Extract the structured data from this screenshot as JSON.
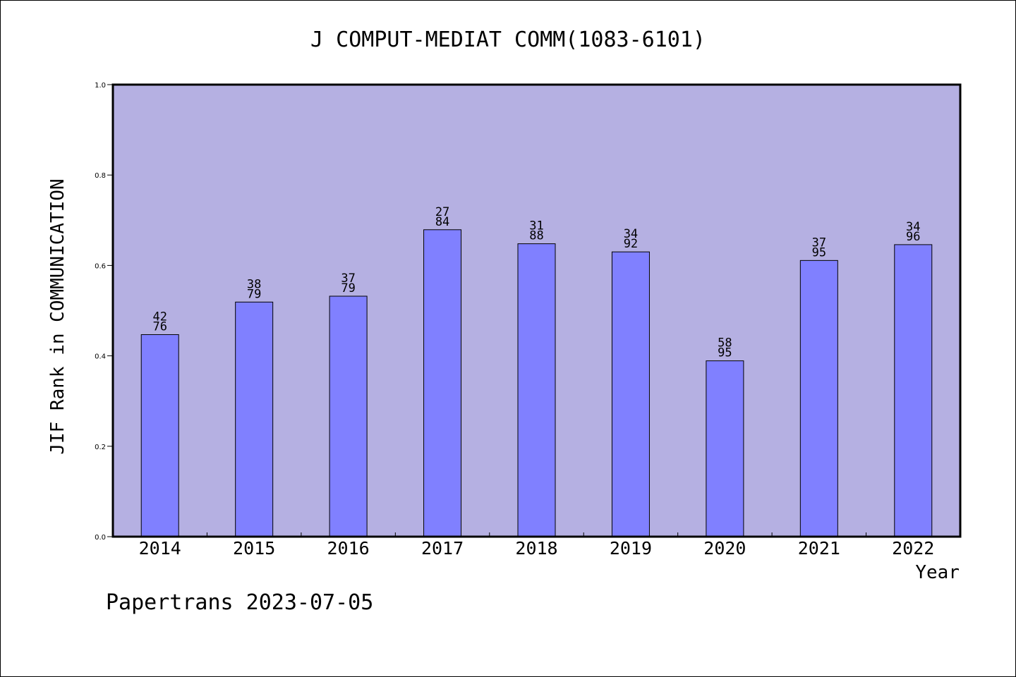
{
  "chart_data": {
    "type": "bar",
    "title": "J COMPUT-MEDIAT COMM(1083-6101)",
    "xlabel": "Year",
    "ylabel": "JIF Rank in COMMUNICATION",
    "ylim": [
      0,
      1.0
    ],
    "yticks": [
      "0.0",
      "0.2",
      "0.4",
      "0.6",
      "0.8",
      "1.0"
    ],
    "categories": [
      "2014",
      "2015",
      "2016",
      "2017",
      "2018",
      "2019",
      "2020",
      "2021",
      "2022"
    ],
    "values": [
      0.447,
      0.519,
      0.532,
      0.679,
      0.648,
      0.63,
      0.389,
      0.611,
      0.646
    ],
    "ranks": [
      {
        "rank": "42",
        "total": "76"
      },
      {
        "rank": "38",
        "total": "79"
      },
      {
        "rank": "37",
        "total": "79"
      },
      {
        "rank": "27",
        "total": "84"
      },
      {
        "rank": "31",
        "total": "88"
      },
      {
        "rank": "34",
        "total": "92"
      },
      {
        "rank": "58",
        "total": "95"
      },
      {
        "rank": "37",
        "total": "95"
      },
      {
        "rank": "34",
        "total": "96"
      }
    ],
    "grid": false,
    "colors": {
      "plot_background": "#b5b0e2",
      "bar_fill": "#8080ff",
      "bar_stroke": "#000000"
    }
  },
  "footer": {
    "text": "Papertrans 2023-07-05"
  }
}
